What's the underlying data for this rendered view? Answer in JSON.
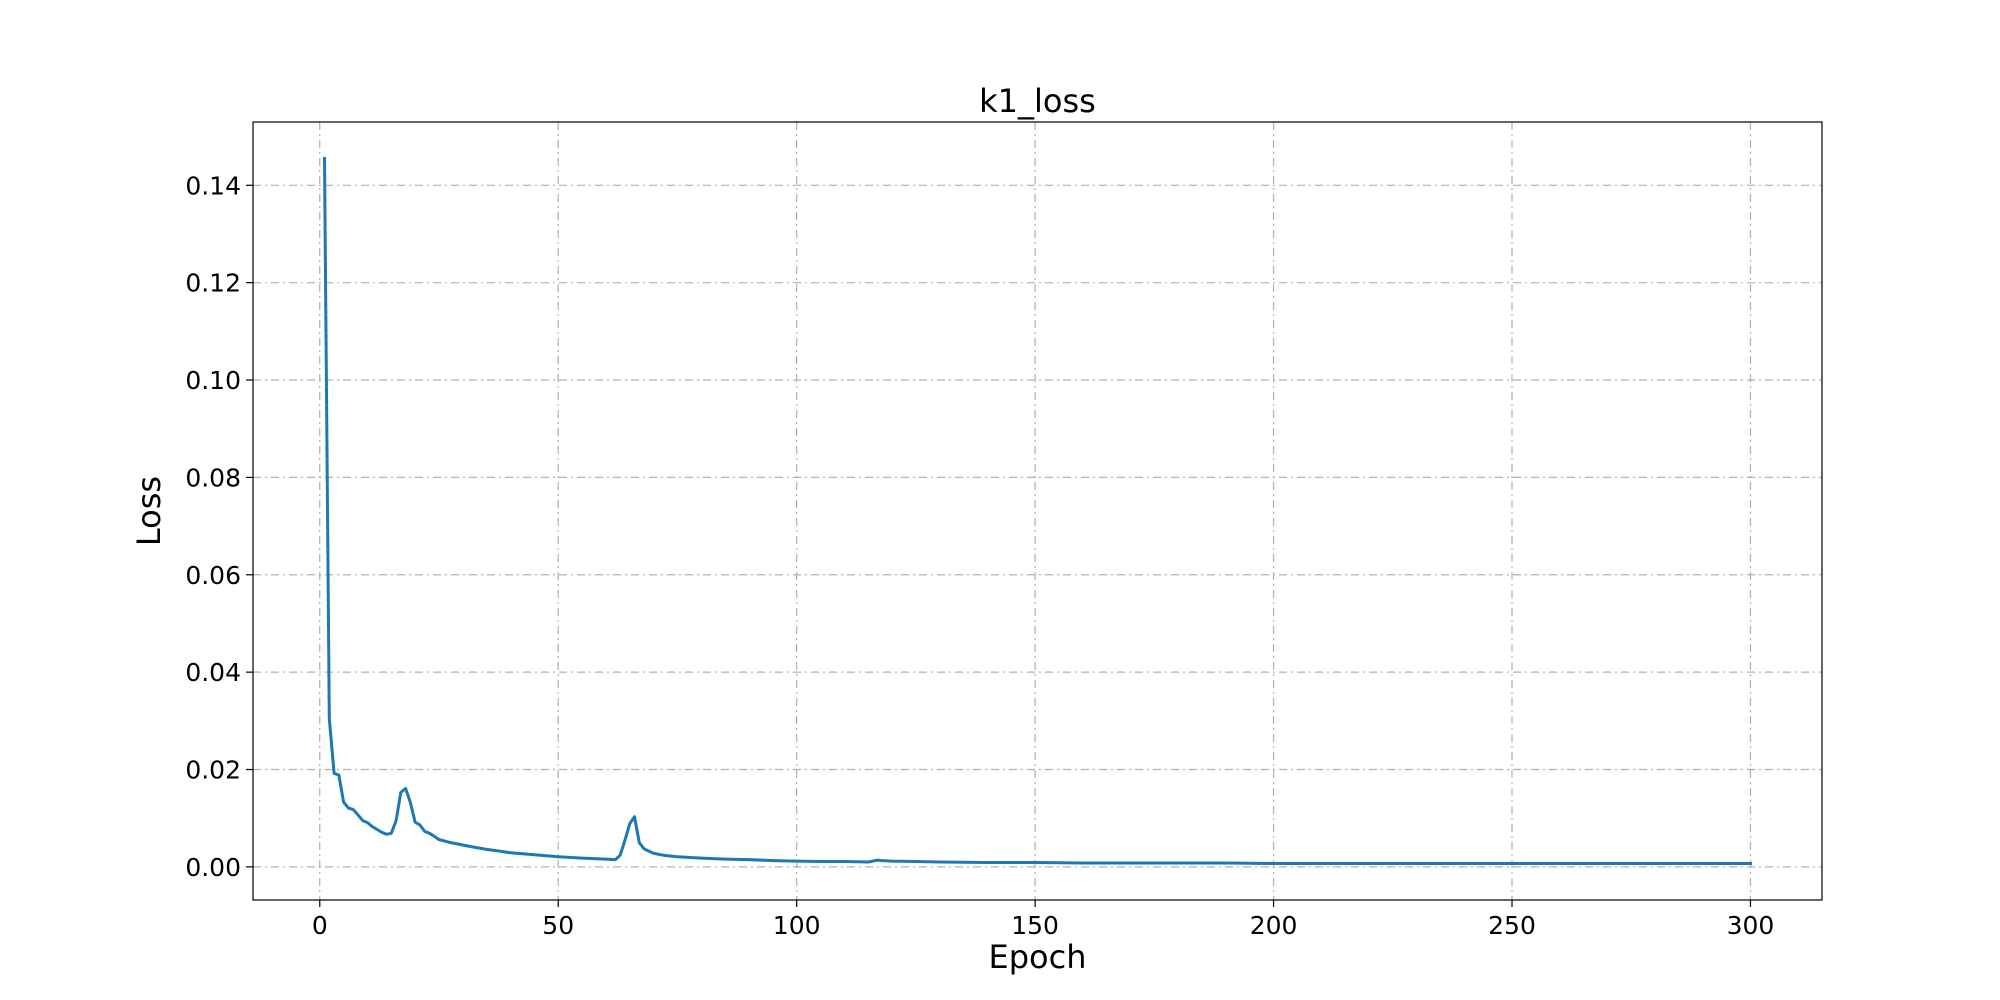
{
  "chart_data": {
    "type": "line",
    "title": "k1_loss",
    "xlabel": "Epoch",
    "ylabel": "Loss",
    "xlim": [
      -14,
      315
    ],
    "ylim": [
      -0.0068,
      0.153
    ],
    "x_ticks": [
      0,
      50,
      100,
      150,
      200,
      250,
      300
    ],
    "y_ticks": [
      0.0,
      0.02,
      0.04,
      0.06,
      0.08,
      0.1,
      0.12,
      0.14
    ],
    "x_tick_labels": [
      "0",
      "50",
      "100",
      "150",
      "200",
      "250",
      "300"
    ],
    "y_tick_labels": [
      "0.00",
      "0.02",
      "0.04",
      "0.06",
      "0.08",
      "0.10",
      "0.12",
      "0.14"
    ],
    "grid": true,
    "line_color": "#1f77b4",
    "series": [
      {
        "x": [
          1,
          2,
          3,
          4,
          5,
          6,
          7,
          8,
          9,
          10,
          11,
          12,
          13,
          14,
          15,
          16,
          17,
          18,
          19,
          20,
          21,
          22,
          23,
          24,
          25,
          27,
          30,
          32,
          35,
          38,
          40,
          45,
          50,
          55,
          60,
          62,
          63,
          64,
          65,
          66,
          67,
          68,
          70,
          72,
          75,
          80,
          85,
          90,
          95,
          100,
          105,
          110,
          115,
          117,
          118,
          120,
          125,
          130,
          140,
          150,
          160,
          170,
          180,
          190,
          200,
          220,
          240,
          260,
          280,
          300
        ],
        "y": [
          0.1455,
          0.0305,
          0.0192,
          0.0189,
          0.0133,
          0.0121,
          0.0118,
          0.0107,
          0.0095,
          0.0091,
          0.0083,
          0.0077,
          0.0071,
          0.0067,
          0.0069,
          0.0095,
          0.0153,
          0.0161,
          0.0132,
          0.0092,
          0.0086,
          0.0073,
          0.0069,
          0.0063,
          0.0056,
          0.0051,
          0.0045,
          0.0041,
          0.0036,
          0.0032,
          0.0029,
          0.0025,
          0.0021,
          0.0018,
          0.0016,
          0.0015,
          0.0024,
          0.0055,
          0.0089,
          0.0103,
          0.005,
          0.0037,
          0.0028,
          0.0024,
          0.0021,
          0.0018,
          0.0016,
          0.0015,
          0.0013,
          0.0012,
          0.0011,
          0.0011,
          0.001,
          0.0014,
          0.0013,
          0.0012,
          0.0011,
          0.001,
          0.0009,
          0.0009,
          0.0008,
          0.0008,
          0.0008,
          0.0008,
          0.0007,
          0.0007,
          0.0007,
          0.0007,
          0.0007,
          0.0007
        ]
      }
    ]
  }
}
